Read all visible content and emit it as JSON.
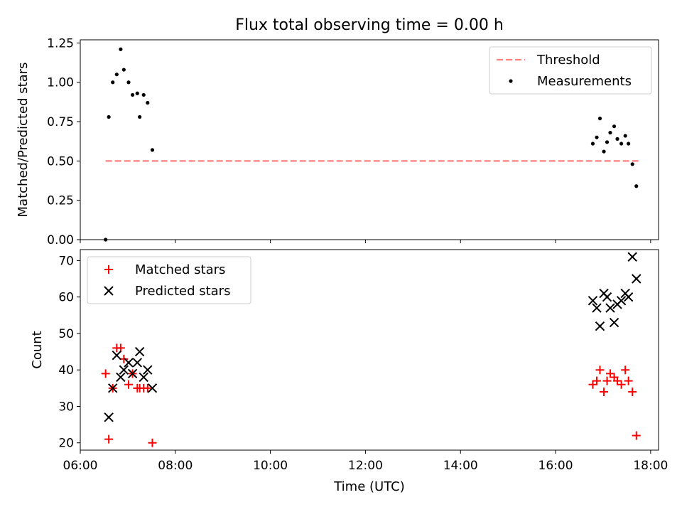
{
  "figure": {
    "title": "Flux total observing time = 0.00 h"
  },
  "chart_data": [
    {
      "type": "scatter",
      "title": "Flux total observing time = 0.00 h",
      "xlabel": "",
      "ylabel": "Matched/Predicted stars",
      "xlim": [
        "06:00",
        "18:10"
      ],
      "ylim": [
        0,
        1.27
      ],
      "yticks": [
        "0.00",
        "0.25",
        "0.50",
        "0.75",
        "1.00",
        "1.25"
      ],
      "grid": false,
      "legend_position": "top-right",
      "series": [
        {
          "name": "Threshold",
          "kind": "dashed-line",
          "color": "#ff7f7f",
          "x": [
            "06:32",
            "17:45"
          ],
          "y": [
            0.5,
            0.5
          ]
        },
        {
          "name": "Measurements",
          "kind": "dot",
          "color": "#000000",
          "x": [
            "06:32",
            "06:36",
            "06:41",
            "06:46",
            "06:51",
            "06:55",
            "07:01",
            "07:06",
            "07:12",
            "07:15",
            "07:20",
            "07:25",
            "07:31",
            "16:47",
            "16:52",
            "16:56",
            "17:01",
            "17:05",
            "17:09",
            "17:14",
            "17:18",
            "17:23",
            "17:28",
            "17:32",
            "17:37",
            "17:42"
          ],
          "y": [
            0.0,
            0.78,
            1.0,
            1.05,
            1.21,
            1.08,
            1.0,
            0.92,
            0.93,
            0.78,
            0.92,
            0.87,
            0.57,
            0.61,
            0.65,
            0.77,
            0.56,
            0.62,
            0.68,
            0.72,
            0.64,
            0.61,
            0.66,
            0.61,
            0.48,
            0.34
          ]
        }
      ]
    },
    {
      "type": "scatter",
      "xlabel": "Time (UTC)",
      "ylabel": "Count",
      "xlim": [
        "06:00",
        "18:10"
      ],
      "ylim": [
        18,
        73
      ],
      "xticks": [
        "06:00",
        "08:00",
        "10:00",
        "12:00",
        "14:00",
        "16:00",
        "18:00"
      ],
      "yticks": [
        "20",
        "30",
        "40",
        "50",
        "60",
        "70"
      ],
      "grid": false,
      "legend_position": "top-left",
      "series": [
        {
          "name": "Matched stars",
          "kind": "plus",
          "color": "#ff0000",
          "x": [
            "06:32",
            "06:36",
            "06:41",
            "06:46",
            "06:51",
            "06:55",
            "07:01",
            "07:06",
            "07:12",
            "07:15",
            "07:20",
            "07:25",
            "07:31",
            "16:47",
            "16:52",
            "16:56",
            "17:01",
            "17:05",
            "17:09",
            "17:14",
            "17:18",
            "17:23",
            "17:28",
            "17:32",
            "17:37",
            "17:42"
          ],
          "y": [
            39,
            21,
            35,
            46,
            46,
            43,
            36,
            39,
            35,
            35,
            35,
            35,
            20,
            36,
            37,
            40,
            34,
            37,
            39,
            38,
            37,
            36,
            40,
            37,
            34,
            22
          ]
        },
        {
          "name": "Predicted stars",
          "kind": "x",
          "color": "#000000",
          "x": [
            "06:36",
            "06:41",
            "06:46",
            "06:51",
            "06:55",
            "07:01",
            "07:06",
            "07:12",
            "07:15",
            "07:20",
            "07:25",
            "07:31",
            "16:47",
            "16:52",
            "16:56",
            "17:01",
            "17:05",
            "17:09",
            "17:14",
            "17:18",
            "17:23",
            "17:28",
            "17:32",
            "17:37",
            "17:42"
          ],
          "y": [
            27,
            35,
            44,
            38,
            40,
            42,
            39,
            42,
            45,
            38,
            40,
            35,
            59,
            57,
            52,
            61,
            60,
            57,
            53,
            58,
            59,
            61,
            60,
            71,
            65
          ]
        }
      ]
    }
  ]
}
